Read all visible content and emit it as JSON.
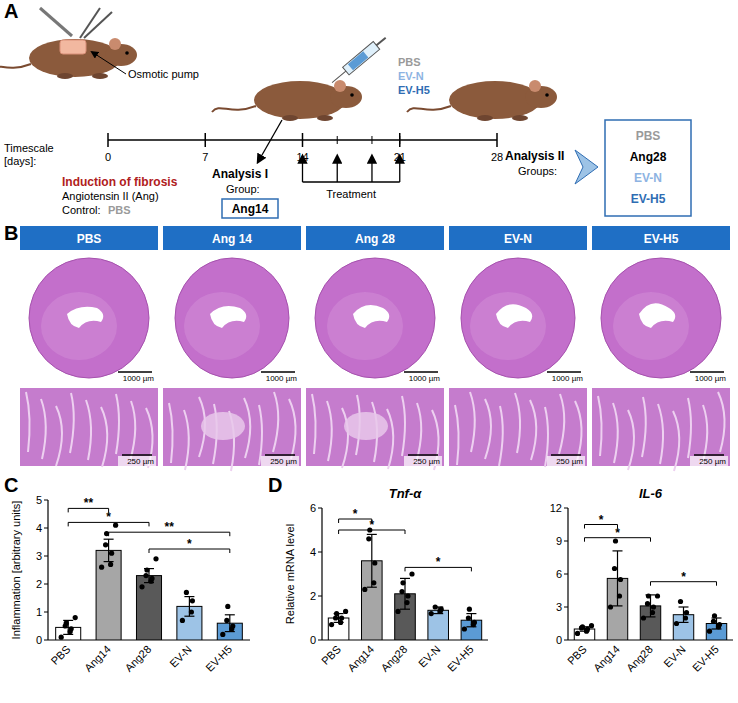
{
  "panel_a": {
    "label": "A",
    "pump_label": "Osmotic pump",
    "timescale_label": [
      "Timescale",
      "[days]:"
    ],
    "day_range": [
      0,
      28
    ],
    "days": [
      0,
      7,
      14,
      21,
      28
    ],
    "treatment_days": [
      14,
      16.5,
      19,
      21
    ],
    "induction_title": "Induction of fibrosis",
    "induction_agent": "Angiotensin II (Ang)",
    "control_label": "Control:",
    "control_group": "PBS",
    "analysis1": {
      "title": "Analysis I",
      "group_label": "Group:",
      "group": "Ang14"
    },
    "treatment_label": "Treatment",
    "injections": [
      {
        "name": "PBS",
        "color": "#9a9a9a"
      },
      {
        "name": "EV-N",
        "color": "#8db3e2"
      },
      {
        "name": "EV-H5",
        "color": "#2f6db3"
      }
    ],
    "analysis2": {
      "title": "Analysis II",
      "group_label": "Groups:",
      "groups": [
        {
          "name": "PBS",
          "color": "#9a9a9a"
        },
        {
          "name": "Ang28",
          "color": "#000000"
        },
        {
          "name": "EV-N",
          "color": "#8db3e2"
        },
        {
          "name": "EV-H5",
          "color": "#2f6db3"
        }
      ]
    }
  },
  "panel_b": {
    "label": "B",
    "groups": [
      "PBS",
      "Ang 14",
      "Ang 28",
      "EV-N",
      "EV-H5"
    ],
    "scale_bars": [
      "1000 µm",
      "250 µm"
    ]
  },
  "panel_c": {
    "label": "C"
  },
  "panel_d": {
    "label": "D"
  },
  "chart_data": [
    {
      "type": "bar",
      "y_label": "Inflammation [arbitrary units]",
      "categories": [
        "PBS",
        "Ang14",
        "Ang28",
        "EV-N",
        "EV-H5"
      ],
      "values": [
        0.45,
        3.2,
        2.3,
        1.2,
        0.6
      ],
      "errors": [
        0.25,
        0.4,
        0.25,
        0.35,
        0.3
      ],
      "points": [
        [
          0.1,
          0.3,
          0.4,
          0.5,
          0.6,
          0.8
        ],
        [
          2.6,
          2.7,
          3.1,
          3.4,
          3.8,
          4.1
        ],
        [
          1.9,
          2.1,
          2.2,
          2.3,
          2.5,
          2.9
        ],
        [
          0.7,
          1.0,
          1.4,
          1.7
        ],
        [
          0.2,
          0.4,
          0.5,
          0.7,
          1.2
        ]
      ],
      "colors": [
        "#ffffff",
        "#a6a6a6",
        "#595959",
        "#9dc3e6",
        "#5b9bd5"
      ],
      "marker": "circle",
      "ylim": [
        0,
        5
      ],
      "yticks": [
        0,
        1,
        2,
        3,
        4,
        5
      ],
      "annotations": [
        {
          "from": 0,
          "to": 1,
          "y": 4.7,
          "label": "**"
        },
        {
          "from": 0,
          "to": 2,
          "y": 4.2,
          "label": "*"
        },
        {
          "from": 1,
          "to": 4,
          "y": 3.85,
          "label": "**"
        },
        {
          "from": 2,
          "to": 4,
          "y": 3.25,
          "label": "*"
        }
      ]
    },
    {
      "type": "bar",
      "title": "Tnf-α",
      "y_label": "Relative mRNA level",
      "categories": [
        "PBS",
        "Ang14",
        "Ang28",
        "EV-N",
        "EV-H5"
      ],
      "values": [
        1.0,
        3.6,
        2.1,
        1.35,
        0.9
      ],
      "errors": [
        0.2,
        1.2,
        0.7,
        0.15,
        0.3
      ],
      "points": [
        [
          0.7,
          0.8,
          1.0,
          1.0,
          1.2,
          1.3
        ],
        [
          2.3,
          2.6,
          3.5,
          4.6,
          5.0
        ],
        [
          1.3,
          1.7,
          2.0,
          2.2,
          2.6,
          3.0
        ],
        [
          1.2,
          1.3,
          1.4,
          1.5
        ],
        [
          0.5,
          0.7,
          0.8,
          1.0,
          1.4
        ]
      ],
      "colors": [
        "#ffffff",
        "#a6a6a6",
        "#595959",
        "#9dc3e6",
        "#5b9bd5"
      ],
      "marker": "circle",
      "ylim": [
        0,
        6
      ],
      "yticks": [
        0,
        2,
        4,
        6
      ],
      "annotations": [
        {
          "from": 0,
          "to": 1,
          "y": 5.5,
          "label": "*"
        },
        {
          "from": 0,
          "to": 2,
          "y": 5.0,
          "label": "*"
        },
        {
          "from": 2,
          "to": 4,
          "y": 3.3,
          "label": "*"
        }
      ]
    },
    {
      "type": "bar",
      "title": "IL-6",
      "categories": [
        "PBS",
        "Ang14",
        "Ang28",
        "EV-N",
        "EV-H5"
      ],
      "values": [
        1.0,
        5.6,
        3.1,
        2.3,
        1.5
      ],
      "errors": [
        0.2,
        2.5,
        1.0,
        0.7,
        0.5
      ],
      "points": [
        [
          0.6,
          0.8,
          1.0,
          1.1,
          1.2,
          1.3
        ],
        [
          3.0,
          4.0,
          5.5,
          6.5,
          9.0
        ],
        [
          2.0,
          2.5,
          3.0,
          3.3,
          4.0,
          4.0
        ],
        [
          1.5,
          2.0,
          2.5,
          3.5
        ],
        [
          0.8,
          1.2,
          1.4,
          1.7,
          2.2
        ]
      ],
      "colors": [
        "#ffffff",
        "#a6a6a6",
        "#595959",
        "#9dc3e6",
        "#5b9bd5"
      ],
      "marker": "circle",
      "ylim": [
        0,
        12
      ],
      "yticks": [
        0,
        3,
        6,
        9,
        12
      ],
      "annotations": [
        {
          "from": 0,
          "to": 1,
          "y": 10.5,
          "label": "*"
        },
        {
          "from": 0,
          "to": 2,
          "y": 9.3,
          "label": "*"
        },
        {
          "from": 2,
          "to": 4,
          "y": 5.3,
          "label": "*"
        }
      ]
    }
  ]
}
